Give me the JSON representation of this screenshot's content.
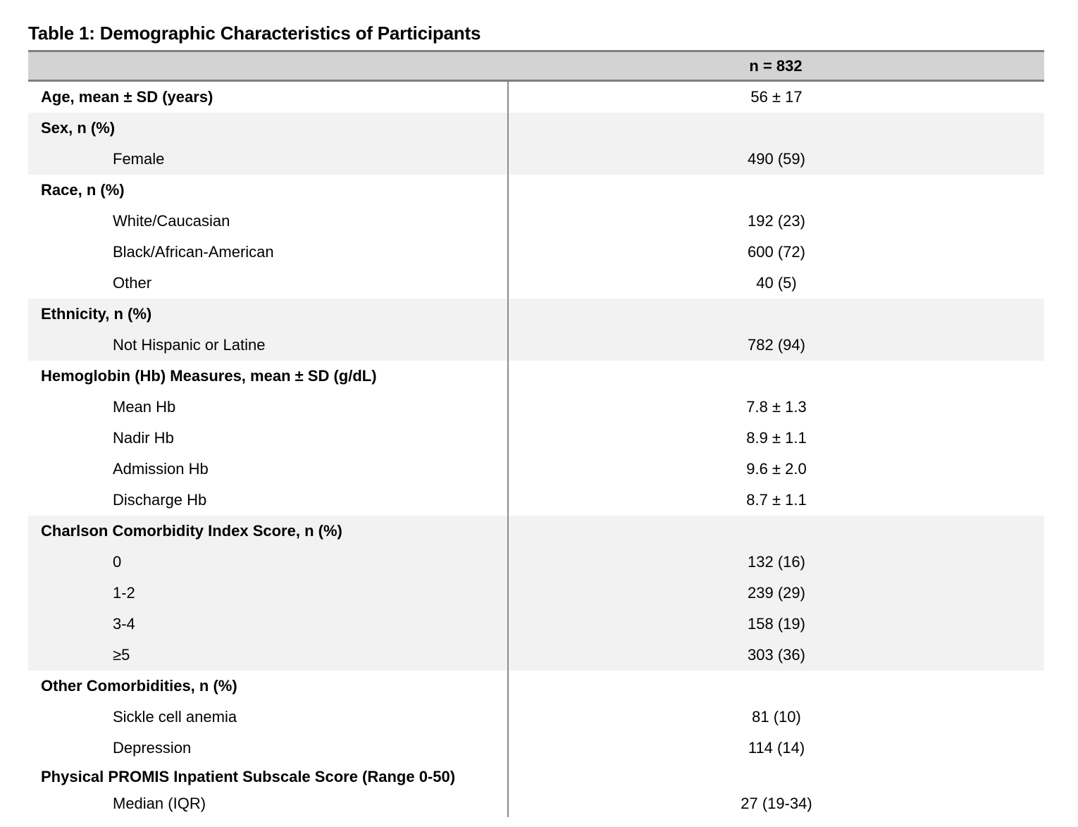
{
  "title": "Table 1: Demographic Characteristics of Participants",
  "table": {
    "header_n": "n = 832",
    "sections": [
      {
        "label": "Age, mean ± SD (years)",
        "value": "56 ± 17",
        "shaded": false,
        "rows": []
      },
      {
        "label": "Sex, n (%)",
        "value": "",
        "shaded": true,
        "rows": [
          {
            "label": "Female",
            "value": "490 (59)"
          }
        ]
      },
      {
        "label": "Race, n (%)",
        "value": "",
        "shaded": false,
        "rows": [
          {
            "label": "White/Caucasian",
            "value": "192 (23)"
          },
          {
            "label": "Black/African-American",
            "value": "600 (72)"
          },
          {
            "label": "Other",
            "value": "40 (5)"
          }
        ]
      },
      {
        "label": "Ethnicity, n (%)",
        "value": "",
        "shaded": true,
        "rows": [
          {
            "label": "Not Hispanic or Latine",
            "value": "782 (94)"
          }
        ]
      },
      {
        "label": "Hemoglobin (Hb) Measures, mean ± SD (g/dL)",
        "value": "",
        "shaded": false,
        "rows": [
          {
            "label": "Mean Hb",
            "value": "7.8 ± 1.3"
          },
          {
            "label": "Nadir Hb",
            "value": "8.9 ± 1.1"
          },
          {
            "label": "Admission Hb",
            "value": "9.6 ± 2.0"
          },
          {
            "label": "Discharge Hb",
            "value": "8.7 ± 1.1"
          }
        ]
      },
      {
        "label": "Charlson Comorbidity Index Score, n (%)",
        "value": "",
        "shaded": true,
        "rows": [
          {
            "label": "0",
            "value": "132 (16)"
          },
          {
            "label": "1-2",
            "value": "239 (29)"
          },
          {
            "label": "3-4",
            "value": "158 (19)"
          },
          {
            "label": "≥5",
            "value": "303 (36)"
          }
        ]
      },
      {
        "label": "Other Comorbidities, n (%)",
        "value": "",
        "shaded": false,
        "rows": [
          {
            "label": "Sickle cell anemia",
            "value": "81 (10)"
          },
          {
            "label": "Depression",
            "value": "114 (14)"
          }
        ]
      },
      {
        "label": "Physical PROMIS Inpatient Subscale Score (Range 0-50)",
        "value": "",
        "shaded": false,
        "compact": true,
        "rows": [
          {
            "label": "Median (IQR)",
            "value": "27 (19-34)"
          }
        ]
      }
    ]
  },
  "colors": {
    "header_bg": "#d3d3d3",
    "band_bg": "#f2f2f2",
    "rule": "#7f7f7f",
    "divider": "#8a8a8a",
    "text": "#000000"
  }
}
